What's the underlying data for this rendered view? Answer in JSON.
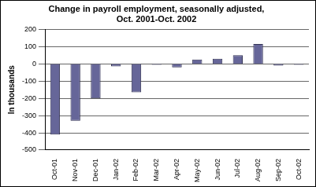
{
  "chart_data": {
    "type": "bar",
    "title": [
      "Change in payroll employment, seasonally adjusted,",
      "Oct. 2001-Oct. 2002"
    ],
    "y_label": "In thousands",
    "categories": [
      "Oct-01",
      "Nov-01",
      "Dec-01",
      "Jan-02",
      "Feb-02",
      "Mar-02",
      "Apr-02",
      "May-02",
      "Jun-02",
      "Jul-02",
      "Aug-02",
      "Sep-02",
      "Oct-02"
    ],
    "values": [
      -410,
      -330,
      -200,
      -15,
      -165,
      -5,
      -20,
      25,
      30,
      50,
      115,
      -10,
      -5
    ],
    "color": "#666699",
    "ylim": [
      -500,
      200
    ],
    "yticks": [
      -500,
      -400,
      -300,
      -200,
      -100,
      0,
      100,
      200
    ],
    "grid": true
  }
}
